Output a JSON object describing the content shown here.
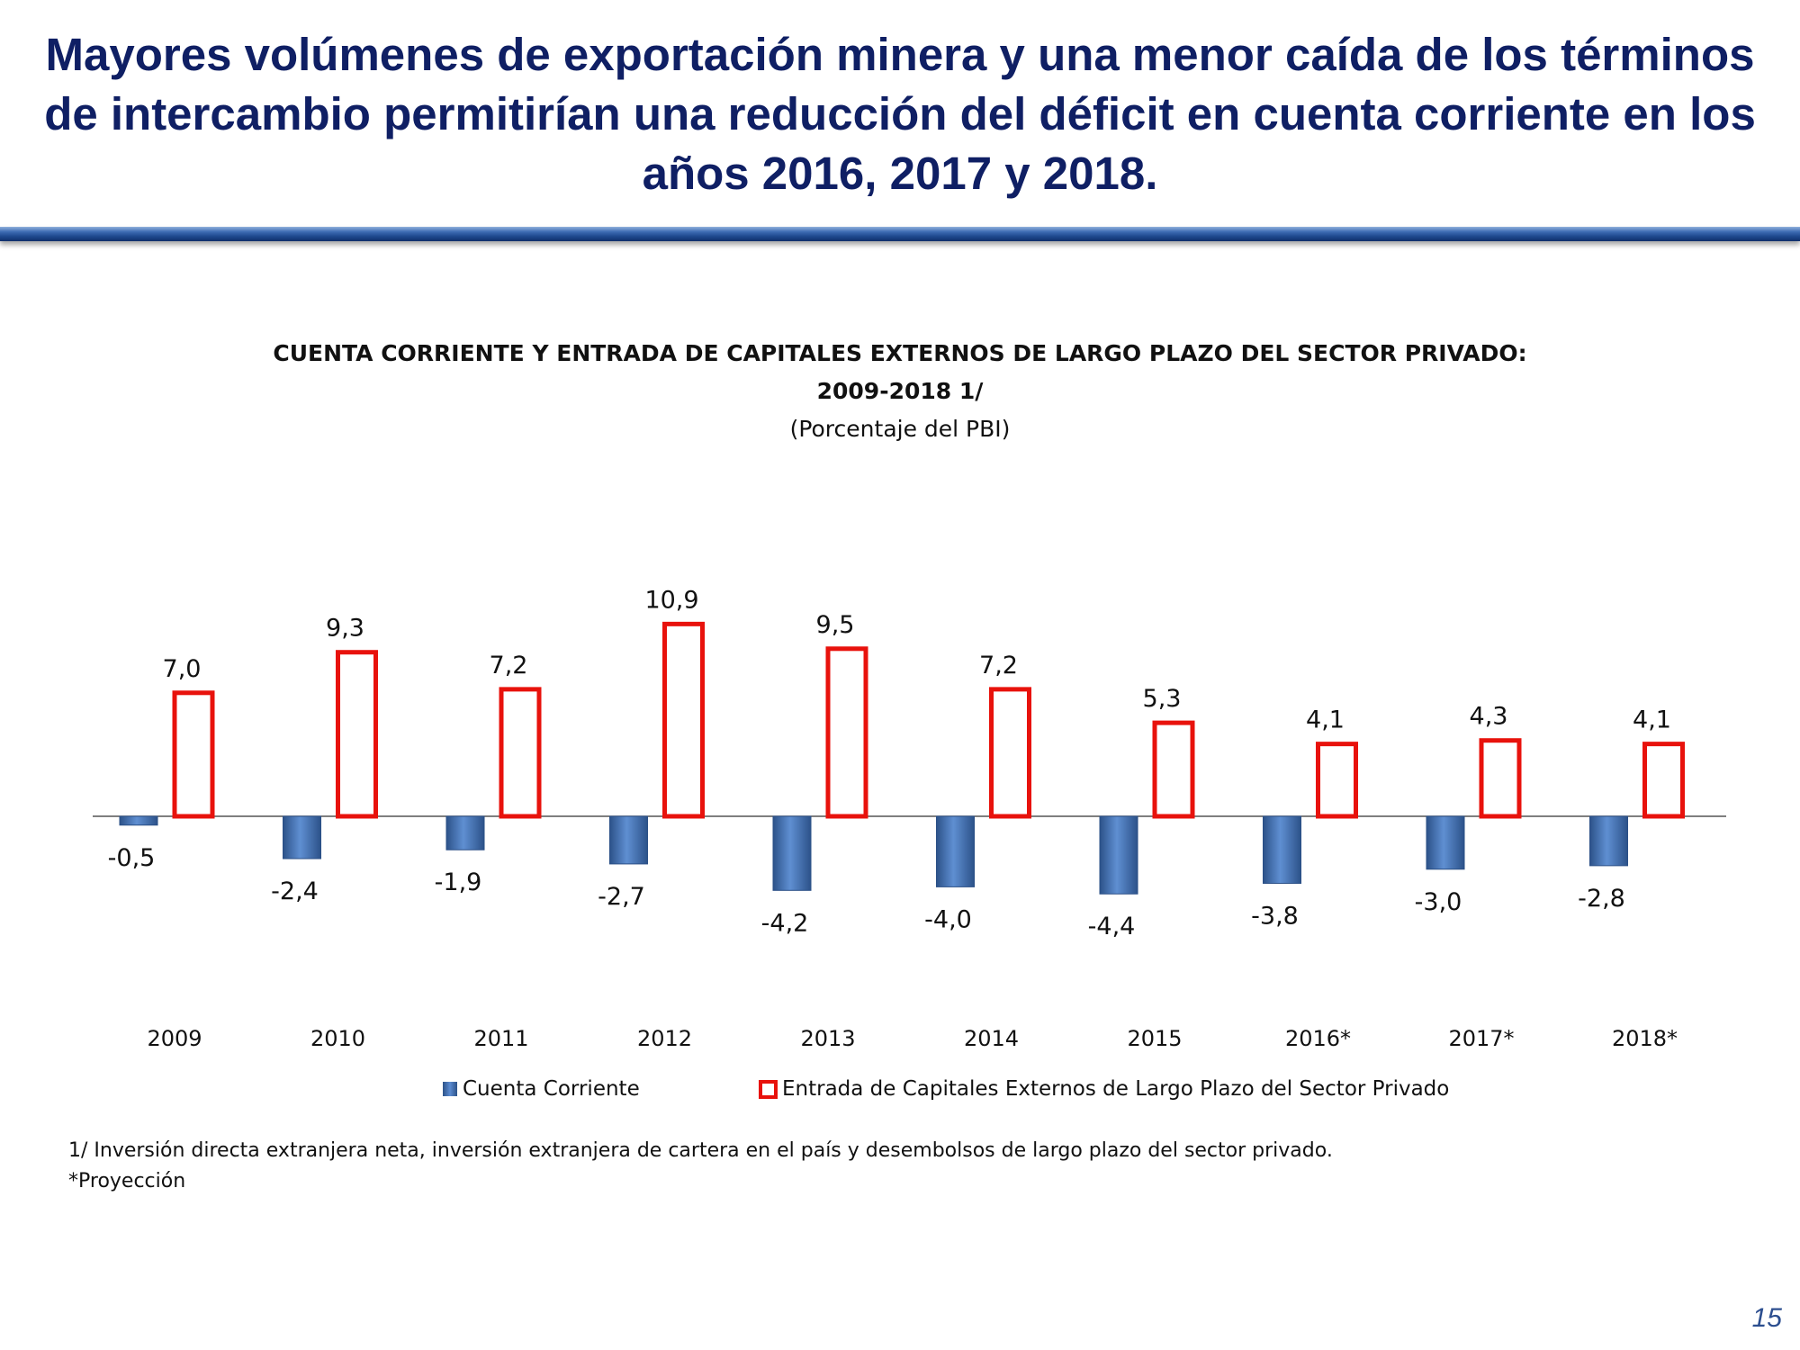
{
  "slide": {
    "title": "Mayores volúmenes de exportación minera y una menor caída de los términos de intercambio permitirían una reducción del déficit en cuenta corriente en los años 2016, 2017 y 2018.",
    "page_number": "15"
  },
  "colors": {
    "title": "#0f1f64",
    "bar_fill": "#4f7fc4",
    "outline_red": "#e8120c"
  },
  "chart_data": {
    "type": "bar",
    "title_line1": "CUENTA CORRIENTE Y ENTRADA DE CAPITALES EXTERNOS DE LARGO PLAZO DEL SECTOR PRIVADO:",
    "title_line2": "2009-2018 1/",
    "subtitle": "(Porcentaje del PBI)",
    "categories": [
      "2009",
      "2010",
      "2011",
      "2012",
      "2013",
      "2014",
      "2015",
      "2016*",
      "2017*",
      "2018*"
    ],
    "series": [
      {
        "name": "Cuenta Corriente",
        "values": [
          -0.5,
          -2.4,
          -1.9,
          -2.7,
          -4.2,
          -4.0,
          -4.4,
          -3.8,
          -3.0,
          -2.8
        ],
        "labels": [
          "-0,5",
          "-2,4",
          "-1,9",
          "-2,7",
          "-4,2",
          "-4,0",
          "-4,4",
          "-3,8",
          "-3,0",
          "-2,8"
        ]
      },
      {
        "name": "Entrada de Capitales Externos de Largo Plazo del Sector Privado",
        "values": [
          7.0,
          9.3,
          7.2,
          10.9,
          9.5,
          7.2,
          5.3,
          4.1,
          4.3,
          4.1
        ],
        "labels": [
          "7,0",
          "9,3",
          "7,2",
          "10,9",
          "9,5",
          "7,2",
          "5,3",
          "4,1",
          "4,3",
          "4,1"
        ]
      }
    ],
    "ylim": [
      -4.4,
      10.9
    ],
    "grid": false,
    "legend": "bottom"
  },
  "footnotes": {
    "note1": "1/ Inversión directa extranjera neta, inversión extranjera de cartera en el país  y desembolsos de largo plazo del sector privado.",
    "note2": "*Proyección"
  }
}
